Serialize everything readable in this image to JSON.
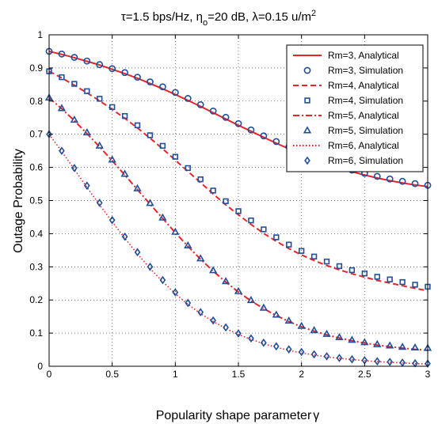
{
  "chart_data": {
    "type": "line",
    "title_parts": {
      "tau": "τ=1.5 bps/Hz, η",
      "eta_sub": "o",
      "eta_val": "=20 dB, λ=0.15 u/m",
      "sq": "2"
    },
    "xlabel": "Popularity shape parameter",
    "xlabel_symbol": "γ",
    "ylabel": "Outage Probability",
    "xlim": [
      0,
      3
    ],
    "ylim": [
      0,
      1
    ],
    "x_ticks": [
      0,
      0.5,
      1,
      1.5,
      2,
      2.5,
      3
    ],
    "x_tick_labels": [
      "0",
      "0.5",
      "1",
      "1.5",
      "2",
      "2.5",
      "3"
    ],
    "y_ticks": [
      0,
      0.1,
      0.2,
      0.3,
      0.4,
      0.5,
      0.6,
      0.7,
      0.8,
      0.9,
      1
    ],
    "y_tick_labels": [
      "0",
      "0.1",
      "0.2",
      "0.3",
      "0.4",
      "0.5",
      "0.6",
      "0.7",
      "0.8",
      "0.9",
      "1"
    ],
    "grid": true,
    "legend_position": "top-right",
    "analytical_color": "#e8242b",
    "simulation_color": "#1f4f9c",
    "x": [
      0,
      0.1,
      0.2,
      0.3,
      0.4,
      0.5,
      0.6,
      0.7,
      0.8,
      0.9,
      1.0,
      1.1,
      1.2,
      1.3,
      1.4,
      1.5,
      1.6,
      1.7,
      1.8,
      1.9,
      2.0,
      2.1,
      2.2,
      2.3,
      2.4,
      2.5,
      2.6,
      2.7,
      2.8,
      2.9,
      3.0
    ],
    "series": [
      {
        "name": "Rm=3, Analytical",
        "kind": "line",
        "dash": "solid",
        "values": [
          0.95,
          0.941,
          0.931,
          0.92,
          0.909,
          0.896,
          0.883,
          0.869,
          0.853,
          0.837,
          0.82,
          0.802,
          0.784,
          0.765,
          0.746,
          0.727,
          0.709,
          0.691,
          0.673,
          0.656,
          0.64,
          0.624,
          0.61,
          0.598,
          0.587,
          0.577,
          0.568,
          0.56,
          0.553,
          0.547,
          0.542
        ]
      },
      {
        "name": "Rm=3, Simulation",
        "kind": "marker",
        "marker": "circle",
        "values": [
          0.95,
          0.942,
          0.932,
          0.921,
          0.91,
          0.898,
          0.886,
          0.872,
          0.858,
          0.843,
          0.826,
          0.808,
          0.789,
          0.77,
          0.751,
          0.732,
          0.713,
          0.695,
          0.678,
          0.662,
          0.646,
          0.63,
          0.616,
          0.604,
          0.592,
          0.582,
          0.573,
          0.565,
          0.558,
          0.551,
          0.546
        ]
      },
      {
        "name": "Rm=4, Analytical",
        "kind": "line",
        "dash": "dashed",
        "values": [
          0.89,
          0.87,
          0.848,
          0.825,
          0.801,
          0.775,
          0.748,
          0.719,
          0.688,
          0.656,
          0.622,
          0.588,
          0.554,
          0.52,
          0.487,
          0.457,
          0.428,
          0.401,
          0.377,
          0.355,
          0.336,
          0.319,
          0.304,
          0.291,
          0.279,
          0.269,
          0.259,
          0.251,
          0.243,
          0.235,
          0.228
        ]
      },
      {
        "name": "Rm=4, Simulation",
        "kind": "marker",
        "marker": "square",
        "values": [
          0.89,
          0.872,
          0.852,
          0.83,
          0.807,
          0.782,
          0.755,
          0.727,
          0.697,
          0.665,
          0.632,
          0.598,
          0.564,
          0.53,
          0.498,
          0.468,
          0.44,
          0.413,
          0.389,
          0.367,
          0.348,
          0.331,
          0.316,
          0.302,
          0.29,
          0.28,
          0.27,
          0.262,
          0.254,
          0.246,
          0.24
        ]
      },
      {
        "name": "Rm=5, Analytical",
        "kind": "line",
        "dash": "dashdot",
        "values": [
          0.81,
          0.777,
          0.741,
          0.702,
          0.662,
          0.62,
          0.577,
          0.533,
          0.489,
          0.446,
          0.403,
          0.362,
          0.323,
          0.287,
          0.254,
          0.224,
          0.197,
          0.174,
          0.153,
          0.135,
          0.119,
          0.106,
          0.095,
          0.085,
          0.077,
          0.07,
          0.064,
          0.059,
          0.055,
          0.051,
          0.048
        ]
      },
      {
        "name": "Rm=5, Simulation",
        "kind": "marker",
        "marker": "triangle",
        "values": [
          0.81,
          0.778,
          0.743,
          0.705,
          0.665,
          0.623,
          0.58,
          0.536,
          0.492,
          0.448,
          0.405,
          0.364,
          0.325,
          0.289,
          0.256,
          0.226,
          0.199,
          0.176,
          0.155,
          0.137,
          0.121,
          0.108,
          0.097,
          0.087,
          0.079,
          0.072,
          0.066,
          0.062,
          0.058,
          0.056,
          0.055
        ]
      },
      {
        "name": "Rm=6, Analytical",
        "kind": "line",
        "dash": "dotted",
        "values": [
          0.7,
          0.648,
          0.594,
          0.54,
          0.487,
          0.436,
          0.386,
          0.339,
          0.295,
          0.255,
          0.219,
          0.187,
          0.159,
          0.135,
          0.114,
          0.096,
          0.081,
          0.068,
          0.057,
          0.048,
          0.04,
          0.034,
          0.028,
          0.024,
          0.02,
          0.017,
          0.014,
          0.012,
          0.01,
          0.008,
          0.007
        ]
      },
      {
        "name": "Rm=6, Simulation",
        "kind": "marker",
        "marker": "diamond",
        "values": [
          0.7,
          0.65,
          0.598,
          0.545,
          0.493,
          0.441,
          0.391,
          0.344,
          0.3,
          0.26,
          0.223,
          0.191,
          0.163,
          0.138,
          0.117,
          0.099,
          0.084,
          0.071,
          0.06,
          0.051,
          0.043,
          0.036,
          0.03,
          0.025,
          0.021,
          0.018,
          0.015,
          0.013,
          0.011,
          0.009,
          0.008
        ]
      }
    ]
  }
}
